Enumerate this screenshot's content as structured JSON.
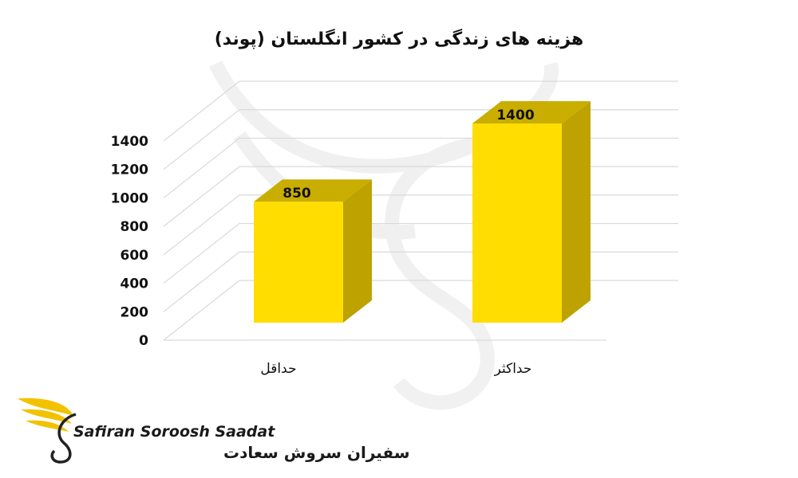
{
  "chart_data": {
    "type": "bar",
    "title": "هزینه های زندگی در کشور انگلستان (پوند)",
    "categories": [
      "حداقل",
      "حداکثر"
    ],
    "values": [
      850,
      1400
    ],
    "y_ticks": [
      0,
      200,
      400,
      600,
      800,
      1000,
      1200,
      1400
    ],
    "ylim": [
      0,
      1400
    ],
    "grid": true,
    "bar_color": "#FFDD00",
    "bar_side_color": "#BDA200",
    "bar_top_color": "#C9AE00",
    "grid_color": "#D9D9D9"
  },
  "brand": {
    "name_en": "Safiran Soroosh Saadat",
    "name_fa": "سفیران سروش سعادت",
    "logo_icon": "golden-wing-s-logo-icon",
    "logo_color": "#F2C200"
  }
}
